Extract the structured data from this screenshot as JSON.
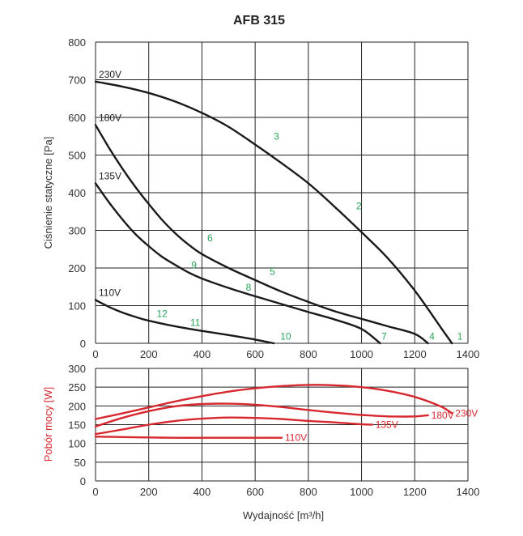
{
  "chart_data": [
    {
      "type": "line",
      "title": "AFB 315",
      "xlabel": "",
      "ylabel": "Ciśnienie statyczne [Pa]",
      "xlim": [
        0,
        1400
      ],
      "ylim": [
        0,
        800
      ],
      "x_ticks": [
        "0",
        "200",
        "400",
        "600",
        "800",
        "1000",
        "1200",
        "1400"
      ],
      "y_ticks": [
        "0",
        "100",
        "200",
        "300",
        "400",
        "500",
        "600",
        "700",
        "800"
      ],
      "grid": true,
      "series": [
        {
          "name": "230V",
          "x": [
            0,
            100,
            200,
            300,
            400,
            500,
            600,
            700,
            800,
            900,
            1000,
            1100,
            1200,
            1300,
            1340
          ],
          "y": [
            695,
            682,
            665,
            642,
            612,
            575,
            528,
            478,
            425,
            362,
            295,
            225,
            140,
            40,
            0
          ]
        },
        {
          "name": "180V",
          "x": [
            0,
            50,
            100,
            150,
            200,
            250,
            300,
            350,
            400,
            500,
            600,
            700,
            800,
            900,
            1000,
            1100,
            1200,
            1250
          ],
          "y": [
            580,
            520,
            465,
            415,
            370,
            328,
            292,
            262,
            237,
            200,
            168,
            137,
            110,
            85,
            65,
            45,
            25,
            0
          ]
        },
        {
          "name": "135V",
          "x": [
            0,
            50,
            100,
            150,
            200,
            250,
            300,
            350,
            400,
            500,
            600,
            700,
            800,
            900,
            1000,
            1070
          ],
          "y": [
            425,
            375,
            330,
            290,
            258,
            230,
            208,
            188,
            172,
            147,
            125,
            104,
            83,
            63,
            38,
            0
          ]
        },
        {
          "name": "110V",
          "x": [
            0,
            50,
            100,
            150,
            200,
            300,
            400,
            500,
            600,
            670
          ],
          "y": [
            115,
            97,
            82,
            70,
            60,
            45,
            33,
            22,
            10,
            0
          ]
        }
      ],
      "curve_labels": [
        "230V",
        "180V",
        "135V",
        "110V"
      ],
      "points": [
        {
          "label": "1",
          "x": 1370,
          "y": 18
        },
        {
          "label": "2",
          "x": 990,
          "y": 365
        },
        {
          "label": "3",
          "x": 680,
          "y": 550
        },
        {
          "label": "4",
          "x": 1265,
          "y": 18
        },
        {
          "label": "5",
          "x": 665,
          "y": 190
        },
        {
          "label": "6",
          "x": 430,
          "y": 280
        },
        {
          "label": "7",
          "x": 1085,
          "y": 18
        },
        {
          "label": "8",
          "x": 575,
          "y": 148
        },
        {
          "label": "9",
          "x": 370,
          "y": 208
        },
        {
          "label": "10",
          "x": 715,
          "y": 18
        },
        {
          "label": "11",
          "x": 375,
          "y": 55
        },
        {
          "label": "12",
          "x": 250,
          "y": 78
        }
      ]
    },
    {
      "type": "line",
      "title": "",
      "xlabel": "Wydajność [m³/h]",
      "ylabel": "Pobór mocy [W]",
      "xlim": [
        0,
        1400
      ],
      "ylim": [
        0,
        300
      ],
      "x_ticks": [
        "0",
        "200",
        "400",
        "600",
        "800",
        "1000",
        "1200",
        "1400"
      ],
      "y_ticks": [
        "0",
        "50",
        "100",
        "150",
        "200",
        "250",
        "300"
      ],
      "grid": true,
      "series": [
        {
          "name": "230V",
          "x": [
            0,
            100,
            200,
            300,
            400,
            500,
            600,
            700,
            800,
            900,
            1000,
            1100,
            1200,
            1300,
            1340
          ],
          "y": [
            165,
            180,
            196,
            212,
            226,
            238,
            247,
            253,
            256,
            255,
            250,
            240,
            224,
            198,
            180
          ]
        },
        {
          "name": "180V",
          "x": [
            0,
            100,
            200,
            300,
            400,
            500,
            600,
            700,
            800,
            900,
            1000,
            1100,
            1200,
            1250
          ],
          "y": [
            145,
            168,
            186,
            199,
            205,
            206,
            203,
            197,
            189,
            182,
            176,
            172,
            172,
            175
          ]
        },
        {
          "name": "135V",
          "x": [
            0,
            100,
            200,
            300,
            400,
            500,
            600,
            700,
            800,
            900,
            1000,
            1040
          ],
          "y": [
            125,
            137,
            150,
            160,
            166,
            169,
            168,
            165,
            160,
            156,
            151,
            150
          ]
        },
        {
          "name": "110V",
          "x": [
            0,
            100,
            200,
            300,
            400,
            500,
            600,
            700
          ],
          "y": [
            118,
            117,
            116,
            115,
            115,
            115,
            115,
            115
          ]
        }
      ],
      "curve_labels": [
        "230V",
        "180V",
        "135V",
        "110V"
      ]
    }
  ]
}
